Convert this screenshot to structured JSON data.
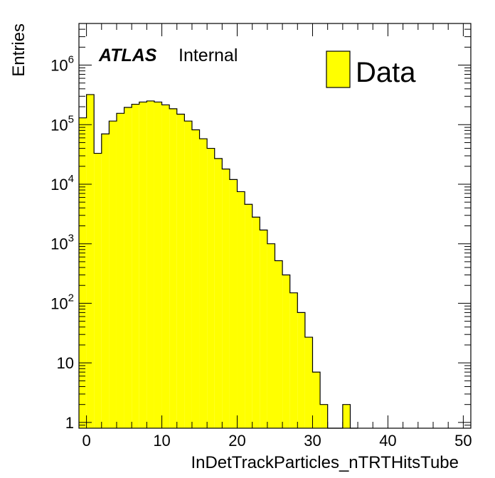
{
  "chart_data": {
    "type": "bar",
    "style": "histogram",
    "log_y": true,
    "xlabel": "InDetTrackParticles_nTRTHitsTube",
    "ylabel": "Entries",
    "xlim": [
      -1,
      51
    ],
    "ylim": [
      0.8,
      5000000
    ],
    "bin_width": 1,
    "x_ticks": [
      0,
      10,
      20,
      30,
      40,
      50
    ],
    "x_tick_labels": [
      "0",
      "10",
      "20",
      "30",
      "40",
      "50"
    ],
    "y_ticks": [
      1,
      10,
      100,
      1000,
      10000,
      100000,
      1000000
    ],
    "y_tick_labels": [
      {
        "base": "1",
        "exp": ""
      },
      {
        "base": "10",
        "exp": ""
      },
      {
        "base": "10",
        "exp": "2"
      },
      {
        "base": "10",
        "exp": "3"
      },
      {
        "base": "10",
        "exp": "4"
      },
      {
        "base": "10",
        "exp": "5"
      },
      {
        "base": "10",
        "exp": "6"
      }
    ],
    "series": [
      {
        "name": "Data",
        "color": "#ffff00",
        "edge_color": "#000000",
        "x": [
          -1,
          0,
          1,
          2,
          3,
          4,
          5,
          6,
          7,
          8,
          9,
          10,
          11,
          12,
          13,
          14,
          15,
          16,
          17,
          18,
          19,
          20,
          21,
          22,
          23,
          24,
          25,
          26,
          27,
          28,
          29,
          30,
          31,
          32,
          33,
          34,
          35
        ],
        "values": [
          130000,
          320000,
          33000,
          70000,
          115000,
          155000,
          195000,
          220000,
          240000,
          250000,
          240000,
          215000,
          185000,
          150000,
          115000,
          82000,
          58000,
          40000,
          27000,
          18000,
          12000,
          7500,
          4600,
          2800,
          1700,
          1000,
          520,
          300,
          150,
          70,
          27,
          7,
          2,
          0,
          0,
          2,
          0
        ]
      }
    ],
    "annotation": {
      "bold": "ATLAS",
      "normal": "Internal"
    },
    "legend": {
      "label": "Data",
      "position": "top-right"
    }
  }
}
